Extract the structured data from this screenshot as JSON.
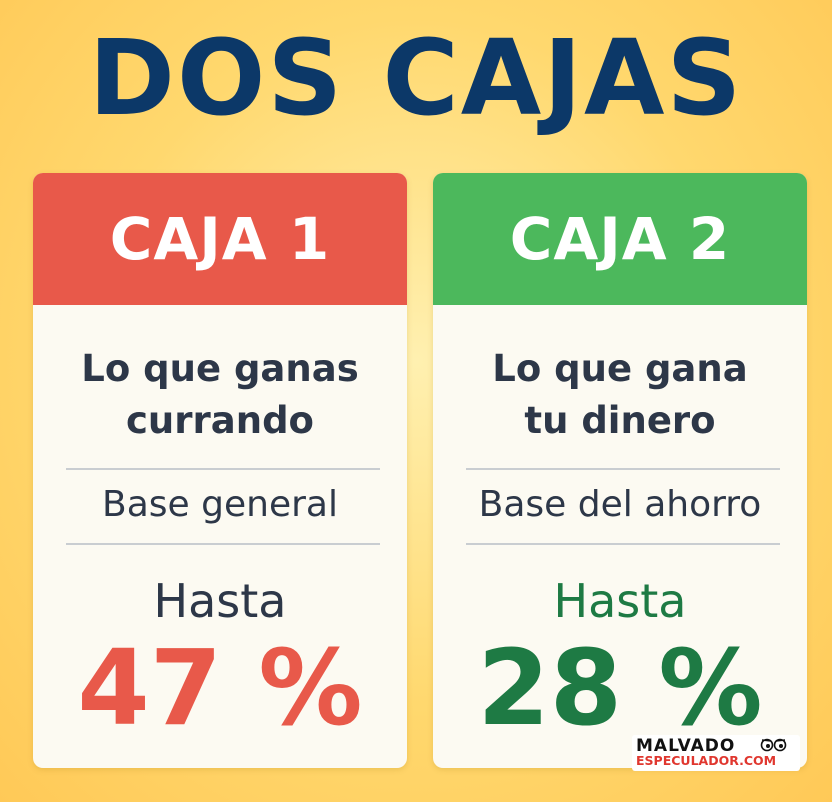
{
  "title": "DOS CAJAS",
  "cards": [
    {
      "header": "CAJA 1",
      "header_color": "#e8594a",
      "description_line1": "Lo que ganas",
      "description_line2": "currando",
      "base": "Base general",
      "hasta": "Hasta",
      "hasta_color": "#2d3748",
      "value": "47 %",
      "value_color": "#e8594a"
    },
    {
      "header": "CAJA 2",
      "header_color": "#4cb85c",
      "description_line1": "Lo que gana",
      "description_line2": "tu dinero",
      "base": "Base del ahorro",
      "hasta": "Hasta",
      "hasta_color": "#1e7a44",
      "value": "28 %",
      "value_color": "#1e7a44"
    }
  ],
  "logo": {
    "line1": "MALVADO",
    "line2": "ESPECULADOR.COM",
    "icon": "glasses-eyes-icon"
  }
}
